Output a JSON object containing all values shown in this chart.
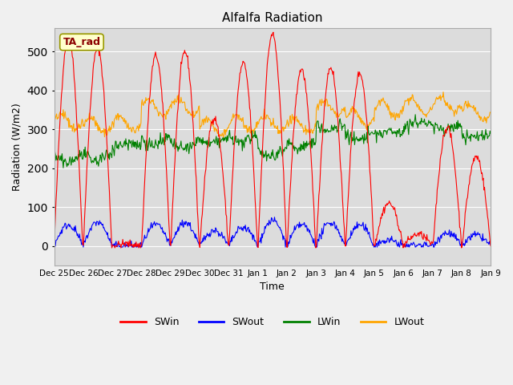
{
  "title": "Alfalfa Radiation",
  "ylabel": "Radiation (W/m2)",
  "xlabel": "Time",
  "ylim": [
    -50,
    560
  ],
  "annotation_text": "TA_rad",
  "colors": {
    "SWin": "red",
    "SWout": "blue",
    "LWin": "green",
    "LWout": "orange"
  },
  "tick_labels": [
    "Dec 25",
    "Dec 26",
    "Dec 27",
    "Dec 28",
    "Dec 29",
    "Dec 30",
    "Dec 31",
    "Jan 1",
    "Jan 2",
    "Jan 3",
    "Jan 4",
    "Jan 5",
    "Jan 6",
    "Jan 7",
    "Jan 8",
    "Jan 9"
  ],
  "n_days": 15,
  "pts_per_day": 48,
  "peaks_SWin": [
    540,
    510,
    5,
    490,
    500,
    330,
    470,
    545,
    455,
    460,
    445,
    110,
    30,
    305,
    230
  ],
  "reflect_ratio": [
    0.1,
    0.12,
    0.1,
    0.11,
    0.12,
    0.12,
    0.1,
    0.12,
    0.12,
    0.13,
    0.12,
    0.13,
    0.1,
    0.11,
    0.12
  ],
  "lwin_levels": [
    237,
    240,
    255,
    280,
    270,
    275,
    285,
    255,
    270,
    315,
    290,
    290,
    310,
    310,
    285,
    265
  ],
  "lwout_levels": [
    320,
    310,
    315,
    355,
    360,
    305,
    315,
    315,
    310,
    355,
    330,
    350,
    360,
    365,
    345,
    320
  ]
}
